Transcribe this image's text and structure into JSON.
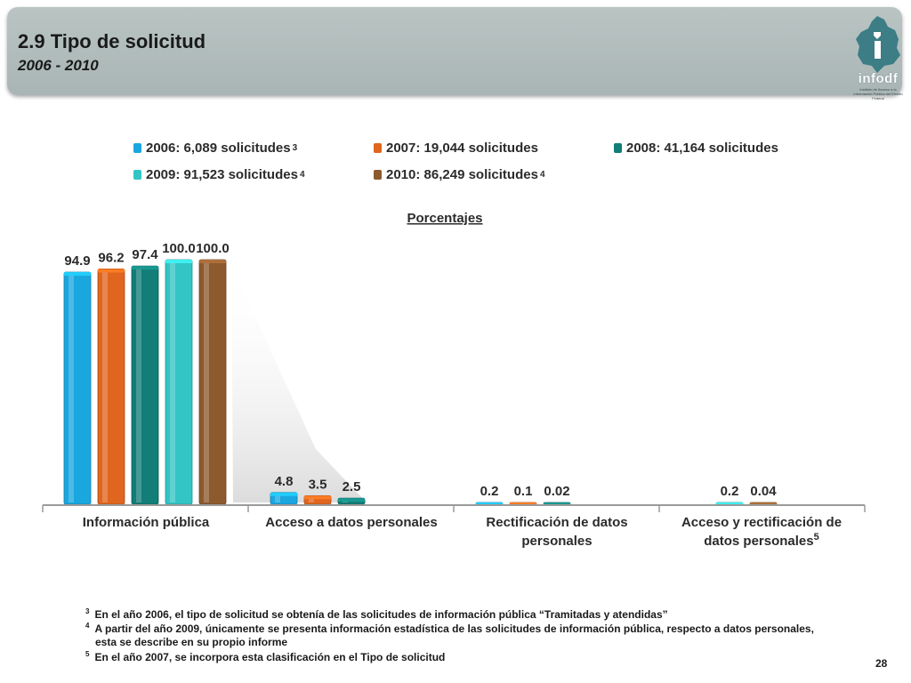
{
  "header": {
    "title": "2.9 Tipo de solicitud",
    "subtitle": "2006 - 2010",
    "logo_text": "infodf",
    "logo_tagline": "Instituto de Acceso a la Información Pública del Distrito Federal"
  },
  "legend": [
    {
      "label": "2006: 6,089 solicitudes",
      "sup": "3",
      "color": "#1aa7e0"
    },
    {
      "label": "2007: 19,044 solicitudes",
      "sup": "",
      "color": "#e0651e"
    },
    {
      "label": "2008: 41,164 solicitudes",
      "sup": "",
      "color": "#137d77"
    },
    {
      "label": "2009: 91,523 solicitudes",
      "sup": "4",
      "color": "#33c4c4"
    },
    {
      "label": "2010: 86,249 solicitudes",
      "sup": "4",
      "color": "#8d5a2e"
    }
  ],
  "chart_data": {
    "type": "bar",
    "title": "Porcentajes",
    "categories": [
      {
        "label": "Información pública",
        "sup": ""
      },
      {
        "label": "Acceso a datos personales",
        "sup": ""
      },
      {
        "label": "Rectificación de datos personales",
        "sup": ""
      },
      {
        "label": "Acceso y rectificación de datos personales",
        "sup": "5"
      }
    ],
    "series": [
      {
        "name": "2006",
        "color": "#1aa7e0",
        "values": [
          94.9,
          4.8,
          0.2,
          null
        ],
        "labels": [
          "94.9",
          "4.8",
          "0.2",
          ""
        ]
      },
      {
        "name": "2007",
        "color": "#e0651e",
        "values": [
          96.2,
          3.5,
          0.1,
          null
        ],
        "labels": [
          "96.2",
          "3.5",
          "0.1",
          ""
        ]
      },
      {
        "name": "2008",
        "color": "#137d77",
        "values": [
          97.4,
          2.5,
          0.02,
          null
        ],
        "labels": [
          "97.4",
          "2.5",
          "0.02",
          ""
        ]
      },
      {
        "name": "2009",
        "color": "#33c4c4",
        "values": [
          100.0,
          null,
          null,
          0.2
        ],
        "labels": [
          "100.0",
          "",
          "",
          "0.2"
        ]
      },
      {
        "name": "2010",
        "color": "#8d5a2e",
        "values": [
          100.0,
          null,
          null,
          0.04
        ],
        "labels": [
          "100.0",
          "",
          "",
          "0.04"
        ]
      }
    ],
    "ylim": [
      0,
      100
    ],
    "grid": false,
    "legend_position": "top"
  },
  "footnotes": [
    {
      "num": "3",
      "text": "En el año 2006, el tipo de solicitud se obtenía  de las solicitudes de información pública “Tramitadas y atendidas”"
    },
    {
      "num": "4",
      "text": "A partir del año 2009, únicamente se presenta información estadística de las solicitudes de información pública, respecto a datos personales,"
    },
    {
      "num": "",
      "text": "esta se describe en su propio informe"
    },
    {
      "num": "5",
      "text": "En el año 2007, se incorpora esta clasificación en el Tipo de solicitud"
    }
  ],
  "page_number": "28"
}
